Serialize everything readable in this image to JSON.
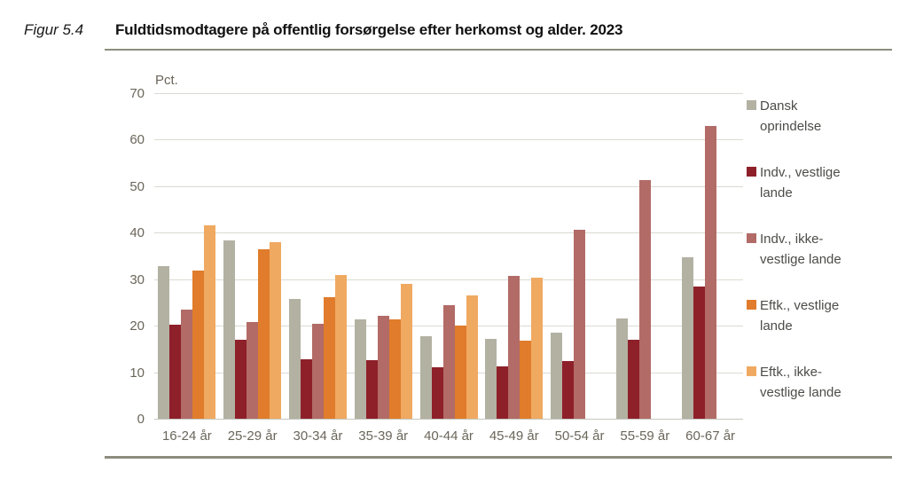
{
  "header": {
    "figure_label": "Figur 5.4",
    "title": "Fuldtidsmodtagere på offentlig forsørgelse efter herkomst og alder. 2023"
  },
  "chart_data": {
    "type": "bar",
    "title": "Fuldtidsmodtagere på offentlig forsørgelse efter herkomst og alder. 2023",
    "ylabel": "Pct.",
    "xlabel": "",
    "ylim": [
      0,
      70
    ],
    "ytick_step": 10,
    "ytick_labels": [
      "0",
      "10",
      "20",
      "30",
      "40",
      "50",
      "60",
      "70"
    ],
    "grid": true,
    "legend_position": "right",
    "categories": [
      "16-24 år",
      "25-29 år",
      "30-34 år",
      "35-39 år",
      "40-44 år",
      "45-49 år",
      "50-54 år",
      "55-59 år",
      "60-67 år"
    ],
    "series": [
      {
        "name": "Dansk oprindelse",
        "color": "#b3b1a2",
        "values": [
          32.9,
          38.4,
          25.8,
          21.4,
          17.7,
          17.2,
          18.5,
          21.5,
          34.8
        ]
      },
      {
        "name": "Indv., vestlige lande",
        "color": "#8e202a",
        "values": [
          20.2,
          16.9,
          12.7,
          12.5,
          11.0,
          11.3,
          12.4,
          16.9,
          28.4
        ]
      },
      {
        "name": "Indv., ikke-vestlige lande",
        "color": "#b26b66",
        "values": [
          23.5,
          20.8,
          20.5,
          22.1,
          24.5,
          30.8,
          40.6,
          51.3,
          62.9
        ]
      },
      {
        "name": "Eftk., vestlige lande",
        "color": "#e07c2b",
        "values": [
          31.8,
          36.5,
          26.1,
          21.4,
          20.1,
          16.8,
          null,
          null,
          null
        ]
      },
      {
        "name": "Eftk., ikke-vestlige lande",
        "color": "#f0a961",
        "values": [
          41.5,
          38.0,
          30.9,
          28.9,
          26.6,
          30.3,
          null,
          null,
          null
        ]
      }
    ]
  },
  "layout_colors": {
    "rule": "#8d8d7f",
    "gridline": "#dadad3",
    "tick_text": "#6b665a",
    "legend_text": "#4c4c48"
  }
}
